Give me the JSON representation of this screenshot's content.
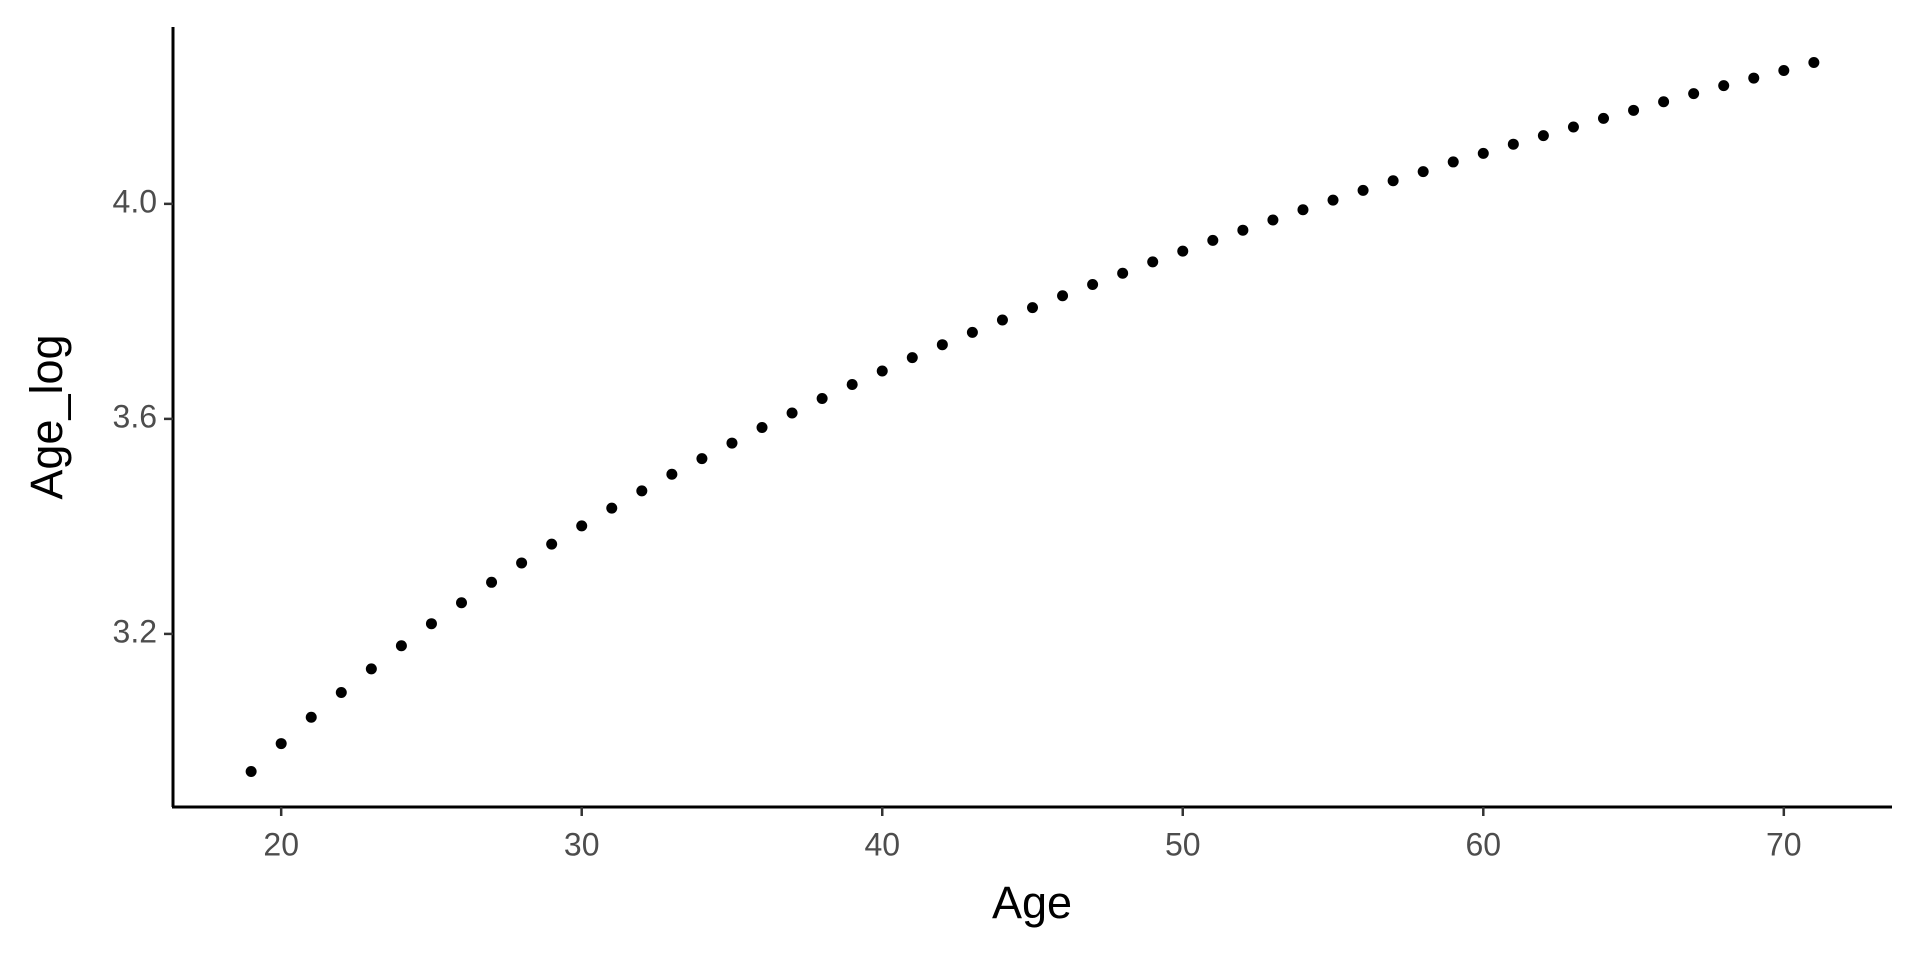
{
  "chart_data": {
    "type": "scatter",
    "x_label": "Age",
    "y_label": "Age_log",
    "x": [
      19,
      20,
      21,
      22,
      23,
      24,
      25,
      26,
      27,
      28,
      29,
      30,
      31,
      32,
      33,
      34,
      35,
      36,
      37,
      38,
      39,
      40,
      41,
      42,
      43,
      44,
      45,
      46,
      47,
      48,
      49,
      50,
      51,
      52,
      53,
      54,
      55,
      56,
      57,
      58,
      59,
      60,
      61,
      62,
      63,
      64,
      65,
      66,
      67,
      68,
      69,
      70,
      71
    ],
    "values": [
      2.944,
      2.996,
      3.045,
      3.091,
      3.135,
      3.178,
      3.219,
      3.258,
      3.296,
      3.332,
      3.367,
      3.401,
      3.434,
      3.466,
      3.497,
      3.526,
      3.555,
      3.584,
      3.611,
      3.638,
      3.664,
      3.689,
      3.714,
      3.738,
      3.761,
      3.784,
      3.807,
      3.829,
      3.85,
      3.871,
      3.892,
      3.912,
      3.932,
      3.951,
      3.97,
      3.989,
      4.007,
      4.025,
      4.043,
      4.06,
      4.078,
      4.094,
      4.111,
      4.127,
      4.143,
      4.159,
      4.174,
      4.19,
      4.205,
      4.22,
      4.234,
      4.248,
      4.263
    ],
    "color": "#000000",
    "xlim": [
      16.4,
      73.6
    ],
    "xticks": [
      20,
      30,
      40,
      50,
      60,
      70
    ],
    "ylim": [
      2.878,
      4.329
    ],
    "yticks": [
      3.2,
      3.6,
      {
        "value": 4,
        "label": "4.0"
      }
    ],
    "grid": false
  }
}
